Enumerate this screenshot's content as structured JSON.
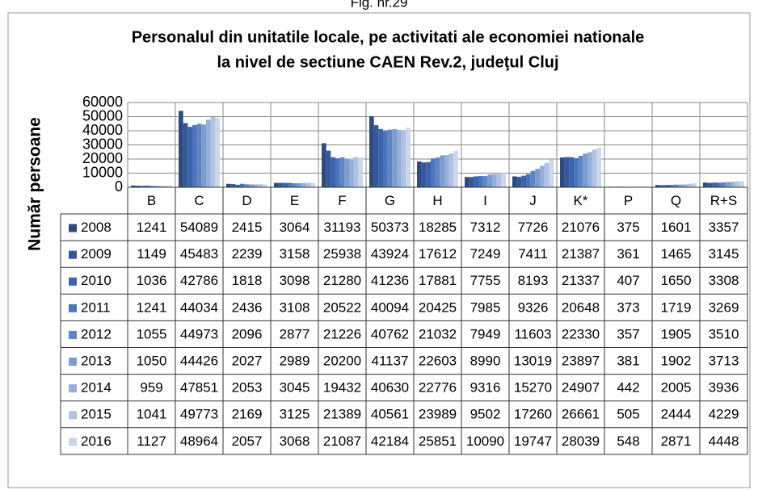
{
  "figure_label": "Fig. nr.29",
  "chart_data": {
    "type": "bar",
    "title": [
      "Personalul din unitatile locale, pe activitati ale economiei nationale",
      "la nivel de sectiune CAEN Rev.2, judeţul  Cluj"
    ],
    "y_label": "Număr persoane",
    "categories": [
      "B",
      "C",
      "D",
      "E",
      "F",
      "G",
      "H",
      "I",
      "J",
      "K*",
      "P",
      "Q",
      "R+S"
    ],
    "ylim": [
      0,
      60000
    ],
    "yticks": [
      0,
      10000,
      20000,
      30000,
      40000,
      50000,
      60000
    ],
    "grid": true,
    "series": [
      {
        "name": "2008",
        "color": "#2f4b7c",
        "values": [
          1241,
          54089,
          2415,
          3064,
          31193,
          50373,
          18285,
          7312,
          7726,
          21076,
          375,
          1601,
          3357
        ]
      },
      {
        "name": "2009",
        "color": "#34589a",
        "values": [
          1149,
          45483,
          2239,
          3158,
          25938,
          43924,
          17612,
          7249,
          7411,
          21387,
          361,
          1465,
          3145
        ]
      },
      {
        "name": "2010",
        "color": "#3c64ad",
        "values": [
          1036,
          42786,
          1818,
          3098,
          21280,
          41236,
          17881,
          7755,
          8193,
          21337,
          407,
          1650,
          3308
        ]
      },
      {
        "name": "2011",
        "color": "#4a74bb",
        "values": [
          1241,
          44034,
          2436,
          3108,
          20522,
          40094,
          20425,
          7985,
          9326,
          20648,
          373,
          1719,
          3269
        ]
      },
      {
        "name": "2012",
        "color": "#5f86c4",
        "values": [
          1055,
          44973,
          2096,
          2877,
          21226,
          40762,
          21032,
          7949,
          11603,
          22330,
          357,
          1905,
          3510
        ]
      },
      {
        "name": "2013",
        "color": "#7c9bce",
        "values": [
          1050,
          44426,
          2027,
          2989,
          20200,
          41137,
          22603,
          8990,
          13019,
          23897,
          381,
          1902,
          3713
        ]
      },
      {
        "name": "2014",
        "color": "#97afd8",
        "values": [
          959,
          47851,
          2053,
          3045,
          19432,
          40630,
          22776,
          9316,
          15270,
          24907,
          442,
          2005,
          3936
        ]
      },
      {
        "name": "2015",
        "color": "#b1c3e2",
        "values": [
          1041,
          49773,
          2169,
          3125,
          21389,
          40561,
          23989,
          9502,
          17260,
          26661,
          505,
          2444,
          4229
        ]
      },
      {
        "name": "2016",
        "color": "#ccd7eb",
        "values": [
          1127,
          48964,
          2057,
          3068,
          21087,
          42184,
          25851,
          10090,
          19747,
          28039,
          548,
          2871,
          4448
        ]
      }
    ]
  }
}
